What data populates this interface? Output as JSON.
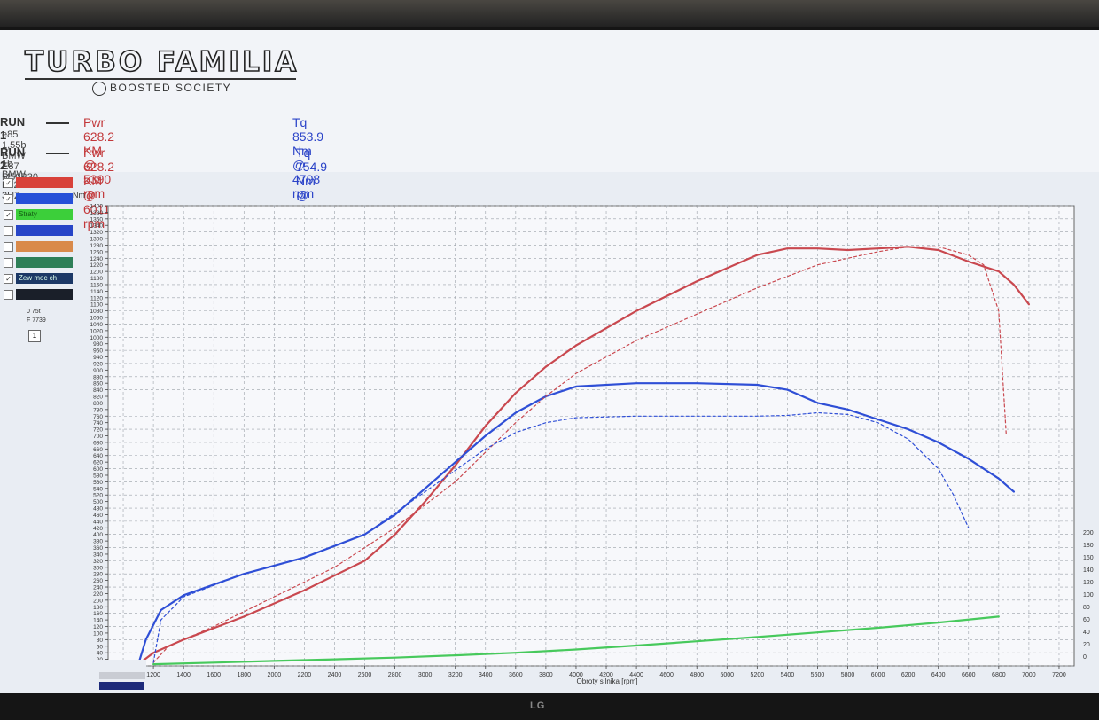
{
  "app": {
    "logo": "TURBO FAMILIA",
    "sublogo": "BOOSTED SOCIETY",
    "monitor_brand": "LG"
  },
  "runs": [
    {
      "label": "RUN 1",
      "pwr": "Pwr  628.2 KM @ 5390 rpm",
      "tq": "Tq  853.9 Nm @ 4708 rpm",
      "car": "e85 1,55b BMW E87 M50B30"
    },
    {
      "label": "RUN 2",
      "pwr": "Pwr  628.2 KM @ 6011 rpm",
      "tq": "Tq  754.9 Nm @ 5428 rpm",
      "car": "1b BMW E82 3UZ"
    }
  ],
  "sidebar": {
    "items": [
      {
        "text": "",
        "color": "#d8413a",
        "checked": true
      },
      {
        "text": "",
        "color": "#2650d8",
        "checked": true
      },
      {
        "text": "Straty",
        "color": "#3ccf3a",
        "checked": true
      },
      {
        "text": "",
        "color": "#2745c7",
        "checked": false
      },
      {
        "text": "",
        "color": "#d98a4a",
        "checked": false
      },
      {
        "text": "",
        "color": "#2e7f57",
        "checked": false
      },
      {
        "text": "Zew moc ch",
        "color": "#1c3866",
        "checked": true
      },
      {
        "text": "",
        "color": "#1a1f29",
        "checked": false
      }
    ],
    "small1": "0 75t",
    "small2": "F 7739",
    "box": "1"
  },
  "colors": {
    "power": "#c9484f",
    "torque": "#2f4fd6",
    "loss": "#47c95c"
  },
  "chart_data": {
    "type": "line",
    "xlabel": "Obroty silnika [rpm]",
    "ylabel_left": "Nm",
    "xlim": [
      900,
      7300
    ],
    "ylim": [
      0,
      1400
    ],
    "x_ticks": [
      1000,
      1200,
      1400,
      1600,
      1800,
      2000,
      2200,
      2400,
      2600,
      2800,
      3000,
      3200,
      3400,
      3600,
      3800,
      4000,
      4200,
      4400,
      4600,
      4800,
      5000,
      5200,
      5400,
      5600,
      5800,
      6000,
      6200,
      6400,
      6600,
      6800,
      7000,
      7200
    ],
    "y_ticks": [
      0,
      20,
      40,
      60,
      80,
      100,
      120,
      140,
      160,
      180,
      200,
      220,
      240,
      260,
      280,
      300,
      320,
      340,
      360,
      380,
      400,
      420,
      440,
      460,
      480,
      500,
      520,
      540,
      560,
      580,
      600,
      620,
      640,
      660,
      680,
      700,
      720,
      740,
      760,
      780,
      800,
      820,
      840,
      860,
      880,
      900,
      920,
      940,
      960,
      980,
      1000,
      1020,
      1040,
      1060,
      1080,
      1100,
      1120,
      1140,
      1160,
      1180,
      1200,
      1220,
      1240,
      1260,
      1280,
      1300,
      1320,
      1340,
      1360,
      1380,
      1400
    ],
    "right_ticks": [
      "0",
      "20",
      "40",
      "60",
      "80",
      "100",
      "120",
      "140",
      "160",
      "180",
      "200"
    ],
    "grid": true,
    "series": [
      {
        "run": 1,
        "kind": "power",
        "style": "solid",
        "color": "#c9484f",
        "x": [
          1100,
          1200,
          1400,
          1800,
          2200,
          2600,
          2800,
          3000,
          3200,
          3400,
          3600,
          3800,
          4000,
          4400,
          4800,
          5200,
          5400,
          5600,
          5800,
          6000,
          6200,
          6400,
          6600,
          6800,
          6900,
          7000
        ],
        "y": [
          5,
          40,
          80,
          150,
          230,
          320,
          400,
          500,
          610,
          730,
          830,
          910,
          975,
          1080,
          1170,
          1250,
          1270,
          1270,
          1265,
          1270,
          1275,
          1265,
          1230,
          1200,
          1160,
          1100
        ]
      },
      {
        "run": 1,
        "kind": "torque",
        "style": "solid",
        "color": "#2f4fd6",
        "x": [
          1100,
          1150,
          1250,
          1400,
          1800,
          2200,
          2600,
          2800,
          3000,
          3200,
          3400,
          3600,
          3800,
          4000,
          4400,
          4800,
          5200,
          5400,
          5600,
          5800,
          6000,
          6200,
          6400,
          6600,
          6800,
          6900
        ],
        "y": [
          5,
          80,
          170,
          215,
          280,
          330,
          400,
          460,
          540,
          620,
          700,
          770,
          820,
          850,
          860,
          860,
          855,
          840,
          800,
          780,
          750,
          720,
          680,
          630,
          570,
          530
        ]
      },
      {
        "run": 2,
        "kind": "power",
        "style": "dashed",
        "color": "#c9484f",
        "x": [
          1200,
          1300,
          1600,
          2000,
          2400,
          2800,
          3200,
          3400,
          3600,
          3800,
          4000,
          4400,
          4800,
          5200,
          5600,
          6000,
          6200,
          6400,
          6600,
          6700,
          6800,
          6850
        ],
        "y": [
          10,
          60,
          120,
          210,
          300,
          420,
          560,
          650,
          740,
          820,
          890,
          990,
          1070,
          1150,
          1220,
          1260,
          1275,
          1275,
          1250,
          1220,
          1080,
          700
        ]
      },
      {
        "run": 2,
        "kind": "torque",
        "style": "dashed",
        "color": "#2f4fd6",
        "x": [
          1200,
          1250,
          1400,
          1800,
          2200,
          2600,
          3000,
          3400,
          3600,
          3800,
          4000,
          4400,
          4800,
          5200,
          5400,
          5600,
          5800,
          6000,
          6200,
          6400,
          6500,
          6600
        ],
        "y": [
          10,
          140,
          210,
          280,
          330,
          400,
          530,
          660,
          710,
          740,
          755,
          760,
          760,
          760,
          762,
          770,
          765,
          740,
          690,
          600,
          520,
          420
        ]
      },
      {
        "run": 1,
        "kind": "loss",
        "style": "solid",
        "color": "#47c95c",
        "x": [
          1200,
          1600,
          2000,
          2400,
          2800,
          3200,
          3600,
          4000,
          4400,
          4800,
          5200,
          5600,
          6000,
          6400,
          6800
        ],
        "y": [
          5,
          10,
          15,
          20,
          25,
          32,
          40,
          50,
          62,
          75,
          88,
          102,
          116,
          132,
          150
        ]
      }
    ]
  }
}
